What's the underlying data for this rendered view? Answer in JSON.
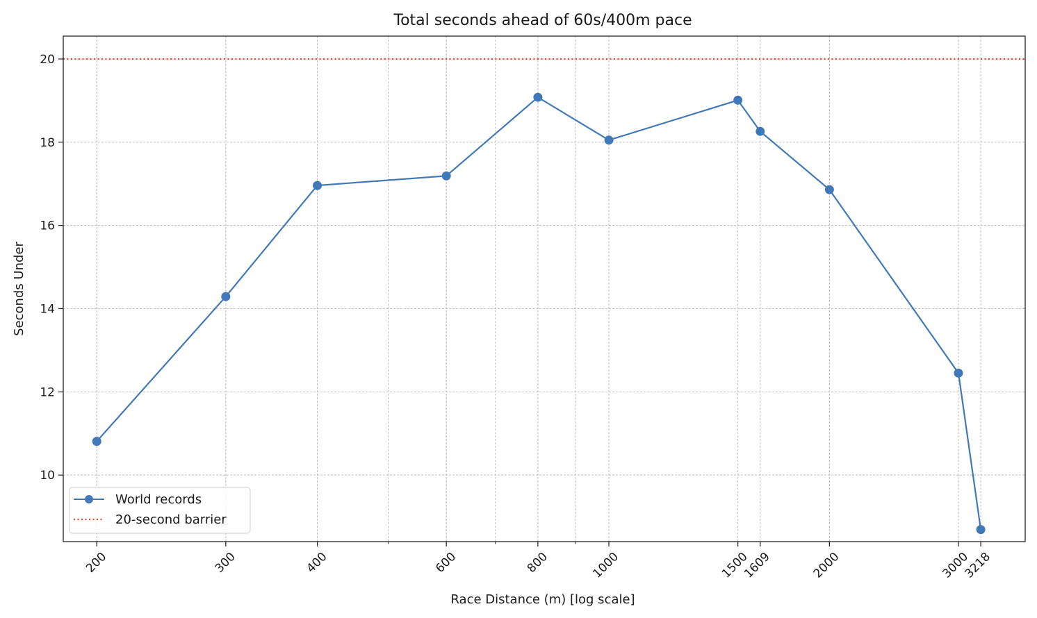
{
  "chart_data": {
    "type": "line",
    "title": "Total seconds ahead of 60s/400m pace",
    "xlabel": "Race Distance (m) [log scale]",
    "ylabel": "Seconds Under",
    "x_scale": "log",
    "xlim": [
      180,
      3700
    ],
    "ylim": [
      8.4,
      20.55
    ],
    "x_ticks": [
      200,
      300,
      400,
      600,
      800,
      1000,
      1500,
      1609,
      2000,
      3000,
      3218
    ],
    "y_ticks": [
      10,
      12,
      14,
      16,
      18,
      20
    ],
    "grid": true,
    "legend_position": "lower-left",
    "series": [
      {
        "name": "World records",
        "color": "#4178b8",
        "marker": "circle",
        "x": [
          200,
          300,
          400,
          600,
          800,
          1000,
          1500,
          1609,
          2000,
          3000,
          3218
        ],
        "y": [
          10.81,
          14.29,
          16.96,
          17.19,
          19.08,
          18.05,
          19.01,
          18.26,
          16.86,
          12.45,
          8.69
        ]
      }
    ],
    "reference_lines": [
      {
        "name": "20-second barrier",
        "y": 20,
        "color": "#e8412c",
        "style": "dotted"
      }
    ]
  }
}
